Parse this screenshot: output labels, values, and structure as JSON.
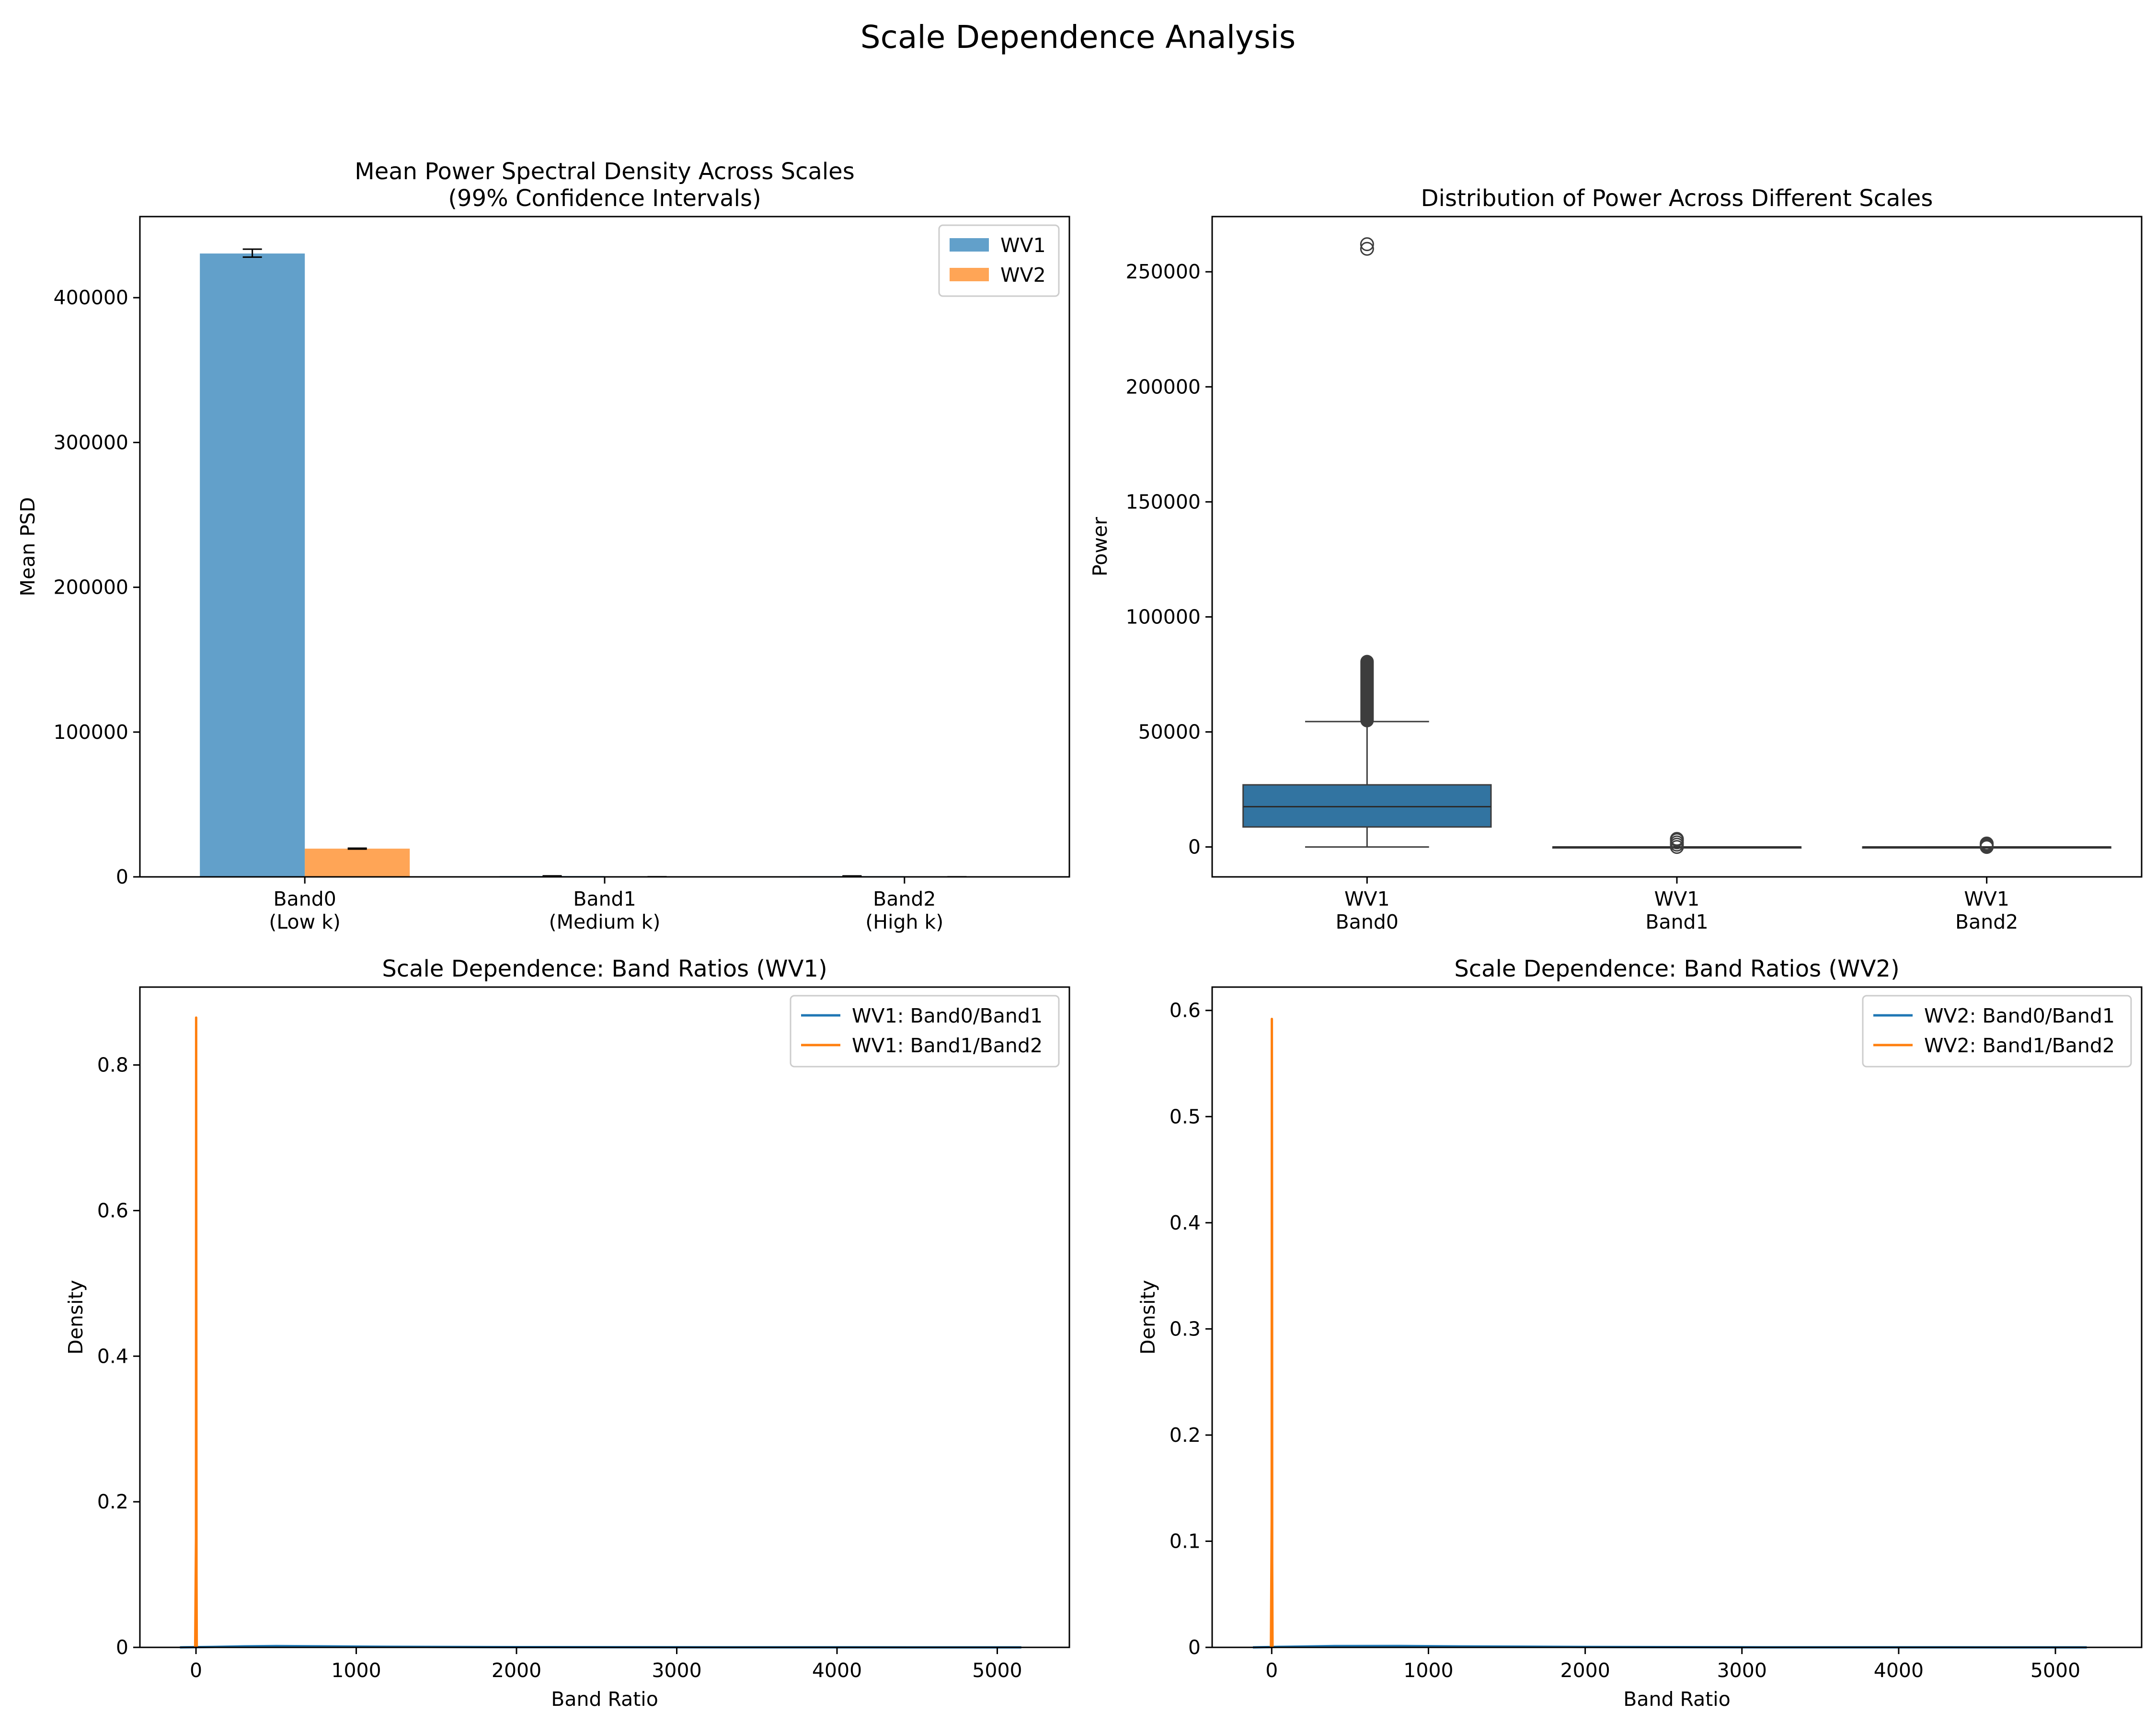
{
  "suptitle": "Scale Dependence Analysis",
  "colors": {
    "wv1": "#1f77b4",
    "wv2": "#ff7f0e",
    "box_fill": "#3274a1",
    "median": "#2b2b2b"
  },
  "panels": [
    {
      "title_lines": [
        "Mean Power Spectral Density Across Scales",
        "(99% Confidence Intervals)"
      ],
      "xlabel": "",
      "ylabel": "Mean PSD"
    },
    {
      "title_lines": [
        "Distribution of Power Across Different Scales"
      ],
      "xlabel": "",
      "ylabel": "Power"
    },
    {
      "title_lines": [
        "Scale Dependence: Band Ratios (WV1)"
      ],
      "xlabel": "Band Ratio",
      "ylabel": "Density"
    },
    {
      "title_lines": [
        "Scale Dependence: Band Ratios (WV2)"
      ],
      "xlabel": "Band Ratio",
      "ylabel": "Density"
    }
  ],
  "chart_data": [
    {
      "type": "bar",
      "title": "Mean Power Spectral Density Across Scales\n(99% Confidence Intervals)",
      "ylabel": "Mean PSD",
      "categories": [
        [
          "Band0",
          "(Low k)"
        ],
        [
          "Band1",
          "(Medium k)"
        ],
        [
          "Band2",
          "(High k)"
        ]
      ],
      "series": [
        {
          "name": "WV1",
          "values": [
            430500,
            600,
            550
          ],
          "ci": [
            [
              428000,
              433500
            ],
            [
              500,
              700
            ],
            [
              450,
              650
            ]
          ]
        },
        {
          "name": "WV2",
          "values": [
            19500,
            80,
            40
          ],
          "ci": [
            [
              19200,
              19800
            ],
            [
              60,
              100
            ],
            [
              30,
              50
            ]
          ]
        }
      ],
      "ylim": [
        0,
        456000
      ],
      "yticks": [
        0,
        100000,
        200000,
        300000,
        400000
      ],
      "legend": "top-right",
      "grid": false
    },
    {
      "type": "box",
      "title": "Distribution of Power Across Different Scales",
      "ylabel": "Power",
      "categories": [
        [
          "WV1",
          "Band0"
        ],
        [
          "WV1",
          "Band1"
        ],
        [
          "WV1",
          "Band2"
        ]
      ],
      "boxes": [
        {
          "min": 0,
          "q1": 8700,
          "median": 17500,
          "q3": 27000,
          "max": 54500,
          "outliers_band": [
            54500,
            81000
          ],
          "outliers": [
            260000,
            262000
          ]
        },
        {
          "min": 0,
          "q1": 0,
          "median": 0,
          "q3": 0,
          "max": 0,
          "outliers": [
            0,
            1000,
            2000,
            3000,
            3500
          ]
        },
        {
          "min": 0,
          "q1": 0,
          "median": 0,
          "q3": 0,
          "max": 0,
          "outliers": [
            0,
            500,
            1000,
            1500
          ]
        }
      ],
      "ylim": [
        -13000,
        274000
      ],
      "yticks": [
        0,
        50000,
        100000,
        150000,
        200000,
        250000
      ],
      "grid": false
    },
    {
      "type": "line",
      "title": "Scale Dependence: Band Ratios (WV1)",
      "xlabel": "Band Ratio",
      "ylabel": "Density",
      "xlim": [
        -350,
        5450
      ],
      "ylim": [
        0,
        0.907
      ],
      "xticks": [
        0,
        1000,
        2000,
        3000,
        4000,
        5000
      ],
      "yticks": [
        0.0,
        0.2,
        0.4,
        0.6,
        0.8
      ],
      "series": [
        {
          "name": "WV1: Band0/Band1",
          "x": [
            -100,
            100,
            300,
            500,
            800,
            1200,
            2000,
            3000,
            4000,
            5150
          ],
          "y": [
            0,
            0.0006,
            0.0014,
            0.0018,
            0.0014,
            0.0008,
            0.0003,
            0.0001,
            5e-05,
            0
          ]
        },
        {
          "name": "WV1: Band1/Band2",
          "x": [
            -5,
            0,
            1,
            2,
            3,
            5
          ],
          "y": [
            0,
            0.15,
            0.865,
            0.5,
            0.1,
            0
          ]
        }
      ],
      "legend": "top-right",
      "grid": false
    },
    {
      "type": "line",
      "title": "Scale Dependence: Band Ratios (WV2)",
      "xlabel": "Band Ratio",
      "ylabel": "Density",
      "xlim": [
        -380,
        5550
      ],
      "ylim": [
        0,
        0.622
      ],
      "xticks": [
        0,
        1000,
        2000,
        3000,
        4000,
        5000
      ],
      "yticks": [
        0.0,
        0.1,
        0.2,
        0.3,
        0.4,
        0.5,
        0.6
      ],
      "series": [
        {
          "name": "WV2: Band0/Band1",
          "x": [
            -120,
            100,
            400,
            800,
            1200,
            2000,
            3000,
            4000,
            5200
          ],
          "y": [
            0,
            0.0006,
            0.0012,
            0.0013,
            0.0009,
            0.0004,
            0.0001,
            5e-05,
            0
          ]
        },
        {
          "name": "WV2: Band1/Band2",
          "x": [
            -5,
            0,
            1,
            2,
            3,
            5
          ],
          "y": [
            0,
            0.12,
            0.592,
            0.4,
            0.08,
            0
          ]
        }
      ],
      "legend": "top-right",
      "grid": false
    }
  ]
}
